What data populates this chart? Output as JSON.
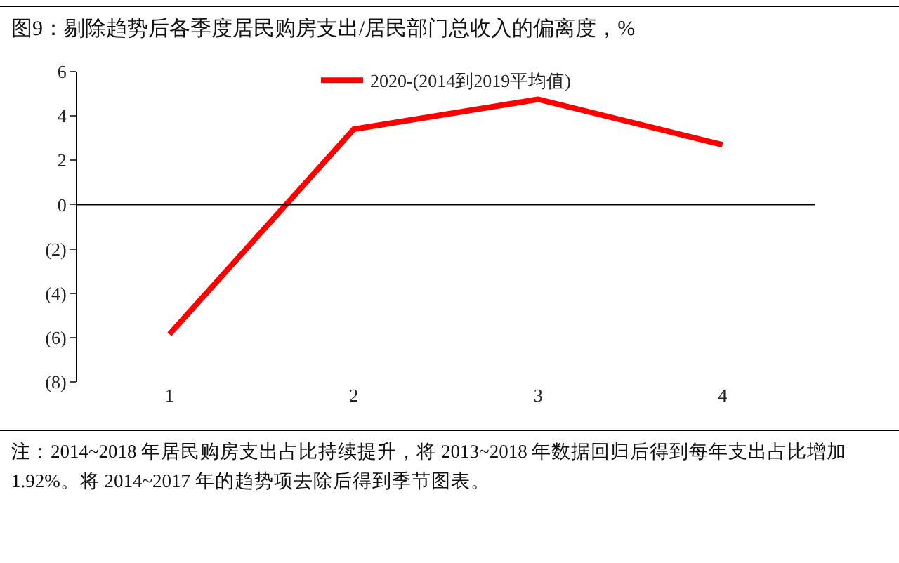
{
  "chart_data": {
    "type": "line",
    "title": "图9：剔除趋势后各季度居民购房支出/居民部门总收入的偏离度，%",
    "categories": [
      "1",
      "2",
      "3",
      "4"
    ],
    "series": [
      {
        "name": "2020-(2014到2019平均值)",
        "color": "#ff0000",
        "values": [
          -5.85,
          3.4,
          4.75,
          2.7
        ]
      }
    ],
    "ylim": [
      -8,
      6
    ],
    "yticks": [
      {
        "value": -8,
        "label": "(8)"
      },
      {
        "value": -6,
        "label": "(6)"
      },
      {
        "value": -4,
        "label": "(4)"
      },
      {
        "value": -2,
        "label": "(2)"
      },
      0,
      2,
      4,
      6
    ],
    "ref_lines": [
      {
        "axis": "y",
        "value": 0,
        "color": "#000000"
      }
    ],
    "grid": false,
    "legend": "top",
    "marker": "none",
    "line_style": "solid",
    "annotations": [
      "注：2014~2018 年居民购房支出占比持续提升，将 2013~2018 年数据回归后得到每年支出占比增加 1.92%。将 2014~2017 年的趋势项去除后得到季节图表。"
    ]
  }
}
